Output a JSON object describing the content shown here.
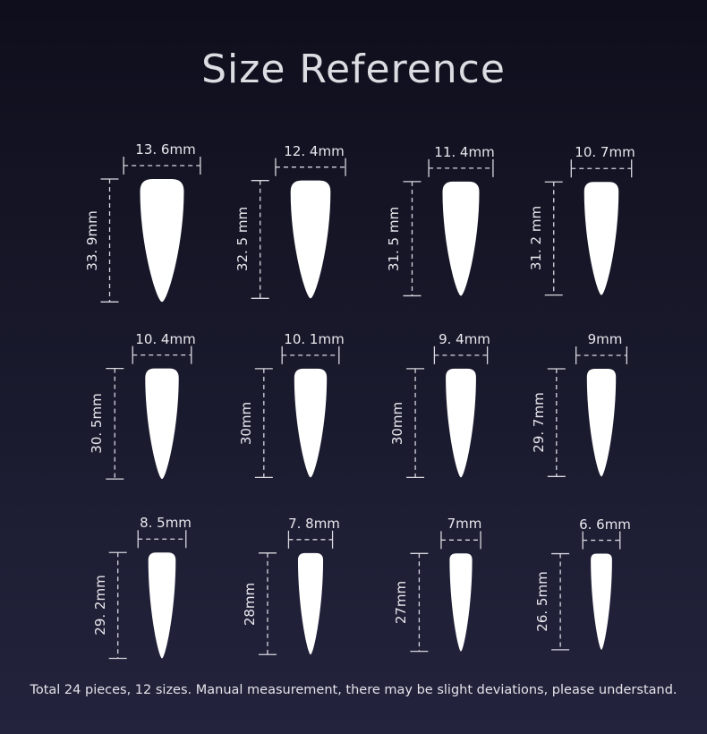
{
  "title": "Size Reference",
  "colors": {
    "background_top": "#0e0e1c",
    "background_bottom": "#23233d",
    "nail": "#ffffff",
    "lines": "#d8d8e0"
  },
  "sizes": [
    {
      "width": 13.6,
      "height": 33.9,
      "width_label": "13. 6mm",
      "height_label": "33. 9mm"
    },
    {
      "width": 12.4,
      "height": 32.5,
      "width_label": "12. 4mm",
      "height_label": "32. 5 mm"
    },
    {
      "width": 11.4,
      "height": 31.5,
      "width_label": "11. 4mm",
      "height_label": "31. 5 mm"
    },
    {
      "width": 10.7,
      "height": 31.2,
      "width_label": "10. 7mm",
      "height_label": "31. 2 mm"
    },
    {
      "width": 10.4,
      "height": 30.5,
      "width_label": "10. 4mm",
      "height_label": "30. 5mm"
    },
    {
      "width": 10.1,
      "height": 30,
      "width_label": "10. 1mm",
      "height_label": "30mm"
    },
    {
      "width": 9.4,
      "height": 30,
      "width_label": "9. 4mm",
      "height_label": "30mm"
    },
    {
      "width": 9,
      "height": 29.7,
      "width_label": "9mm",
      "height_label": "29. 7mm"
    },
    {
      "width": 8.5,
      "height": 29.2,
      "width_label": "8. 5mm",
      "height_label": "29. 2mm"
    },
    {
      "width": 7.8,
      "height": 28,
      "width_label": "7. 8mm",
      "height_label": "28mm"
    },
    {
      "width": 7,
      "height": 27,
      "width_label": "7mm",
      "height_label": "27mm"
    },
    {
      "width": 6.6,
      "height": 26.5,
      "width_label": "6. 6mm",
      "height_label": "26. 5mm"
    }
  ],
  "footer": "Total 24 pieces, 12 sizes. Manual measurement, there may be slight deviations, please understand."
}
